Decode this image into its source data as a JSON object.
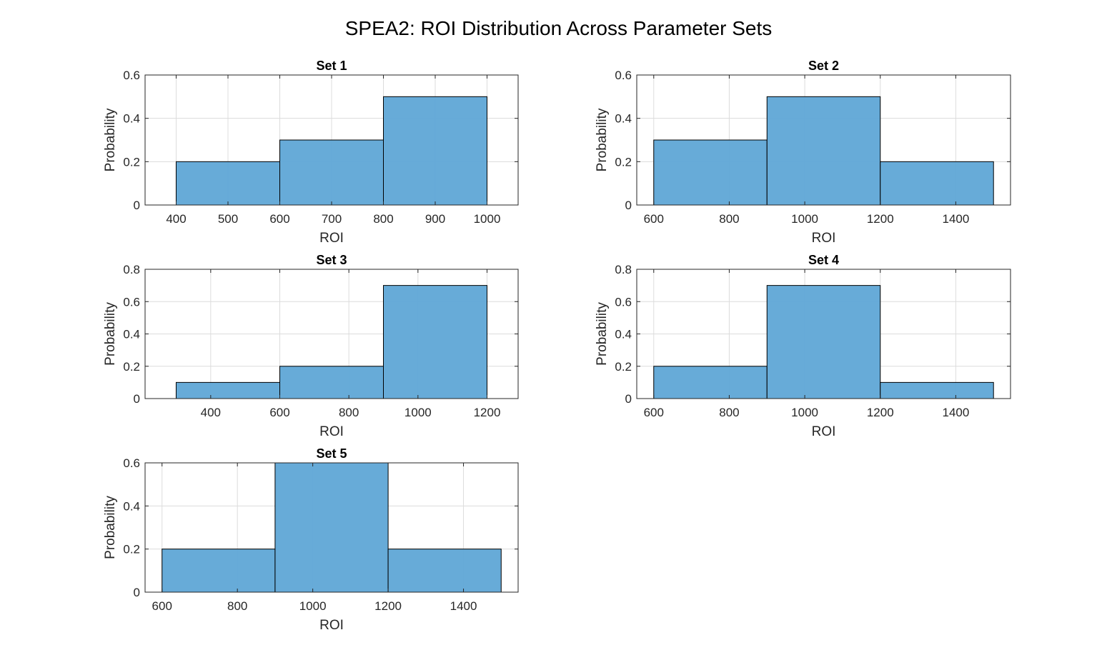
{
  "figure": {
    "title": "SPEA2: ROI Distribution Across Parameter Sets"
  },
  "colors": {
    "bar_fill": "#62a8d7",
    "bar_edge": "#000000",
    "grid": "#dcdcdc",
    "axes": "#262626"
  },
  "chart_data": [
    {
      "type": "bar",
      "title": "Set 1",
      "xlabel": "ROI",
      "ylabel": "Probability",
      "bin_edges": [
        400,
        600,
        800,
        1000
      ],
      "values": [
        0.2,
        0.3,
        0.5
      ],
      "xlim": [
        340,
        1060
      ],
      "ylim": [
        0,
        0.6
      ],
      "xticks": [
        400,
        500,
        600,
        700,
        800,
        900,
        1000
      ],
      "yticks": [
        0,
        0.2,
        0.4,
        0.6
      ],
      "grid": true
    },
    {
      "type": "bar",
      "title": "Set 2",
      "xlabel": "ROI",
      "ylabel": "Probability",
      "bin_edges": [
        600,
        900,
        1200,
        1500
      ],
      "values": [
        0.3,
        0.5,
        0.2
      ],
      "xlim": [
        555,
        1545
      ],
      "ylim": [
        0,
        0.6
      ],
      "xticks": [
        600,
        800,
        1000,
        1200,
        1400
      ],
      "yticks": [
        0,
        0.2,
        0.4,
        0.6
      ],
      "grid": true
    },
    {
      "type": "bar",
      "title": "Set 3",
      "xlabel": "ROI",
      "ylabel": "Probability",
      "bin_edges": [
        300,
        600,
        900,
        1200
      ],
      "values": [
        0.1,
        0.2,
        0.7
      ],
      "xlim": [
        210,
        1290
      ],
      "ylim": [
        0,
        0.8
      ],
      "xticks": [
        400,
        600,
        800,
        1000,
        1200
      ],
      "yticks": [
        0,
        0.2,
        0.4,
        0.6,
        0.8
      ],
      "grid": true
    },
    {
      "type": "bar",
      "title": "Set 4",
      "xlabel": "ROI",
      "ylabel": "Probability",
      "bin_edges": [
        600,
        900,
        1200,
        1500
      ],
      "values": [
        0.2,
        0.7,
        0.1
      ],
      "xlim": [
        555,
        1545
      ],
      "ylim": [
        0,
        0.8
      ],
      "xticks": [
        600,
        800,
        1000,
        1200,
        1400
      ],
      "yticks": [
        0,
        0.2,
        0.4,
        0.6,
        0.8
      ],
      "grid": true
    },
    {
      "type": "bar",
      "title": "Set 5",
      "xlabel": "ROI",
      "ylabel": "Probability",
      "bin_edges": [
        600,
        900,
        1200,
        1500
      ],
      "values": [
        0.2,
        0.6,
        0.2
      ],
      "xlim": [
        555,
        1545
      ],
      "ylim": [
        0,
        0.6
      ],
      "xticks": [
        600,
        800,
        1000,
        1200,
        1400
      ],
      "yticks": [
        0,
        0.2,
        0.4,
        0.6
      ],
      "grid": true
    }
  ]
}
